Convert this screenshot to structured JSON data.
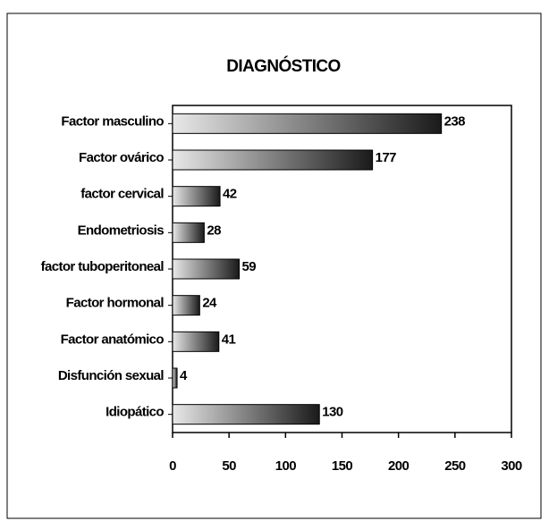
{
  "chart_data": {
    "type": "bar",
    "orientation": "horizontal",
    "title": "DIAGNÓSTICO",
    "categories": [
      "Factor masculino",
      "Factor ovárico",
      "factor cervical",
      "Endometriosis",
      "factor tuboperitoneal",
      "Factor hormonal",
      "Factor anatómico",
      "Disfunción sexual",
      "Idiopático"
    ],
    "values": [
      238,
      177,
      42,
      28,
      59,
      24,
      41,
      4,
      130
    ],
    "color": "#1a1a1a",
    "xlim": [
      0,
      300
    ],
    "xticks": [
      0,
      50,
      100,
      150,
      200,
      250,
      300
    ],
    "grid": false
  }
}
